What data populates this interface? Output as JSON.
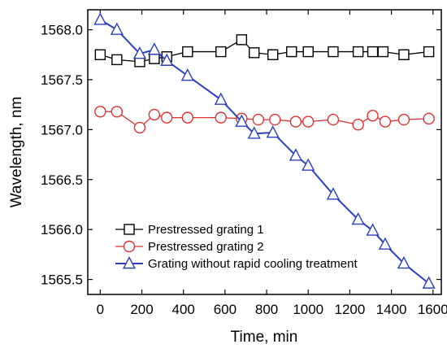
{
  "chart_data": {
    "type": "line",
    "title": "",
    "xlabel": "Time, min",
    "ylabel": "Wavelength, nm",
    "xlim": [
      -60,
      1640
    ],
    "ylim": [
      1565.35,
      1568.2
    ],
    "x_ticks": [
      "0",
      "200",
      "400",
      "600",
      "800",
      "1000",
      "1200",
      "1400",
      "1600"
    ],
    "y_ticks": [
      "1565.5",
      "1566.0",
      "1566.5",
      "1567.0",
      "1567.5",
      "1568.0"
    ],
    "grid": false,
    "legend_position": "bottom-left",
    "series": [
      {
        "name": "Prestressed grating 1",
        "color": "#000000",
        "marker": "square",
        "x": [
          0,
          80,
          190,
          260,
          320,
          420,
          580,
          680,
          740,
          830,
          920,
          1000,
          1120,
          1240,
          1310,
          1360,
          1460,
          1580
        ],
        "y": [
          1567.75,
          1567.7,
          1567.68,
          1567.71,
          1567.73,
          1567.78,
          1567.78,
          1567.9,
          1567.77,
          1567.75,
          1567.78,
          1567.78,
          1567.78,
          1567.78,
          1567.78,
          1567.78,
          1567.75,
          1567.78
        ]
      },
      {
        "name": "Prestressed grating 2",
        "color": "#e03030",
        "marker": "circle",
        "x": [
          0,
          80,
          190,
          260,
          320,
          420,
          580,
          680,
          760,
          840,
          940,
          1000,
          1120,
          1240,
          1310,
          1370,
          1460,
          1580
        ],
        "y": [
          1567.18,
          1567.18,
          1567.02,
          1567.15,
          1567.12,
          1567.12,
          1567.12,
          1567.11,
          1567.1,
          1567.1,
          1567.08,
          1567.08,
          1567.1,
          1567.05,
          1567.14,
          1567.08,
          1567.1,
          1567.11
        ]
      },
      {
        "name": "Grating without rapid cooling treatment",
        "color": "#2a3fc2",
        "marker": "triangle",
        "x": [
          0,
          80,
          190,
          260,
          320,
          420,
          580,
          680,
          740,
          830,
          940,
          1000,
          1120,
          1240,
          1310,
          1370,
          1460,
          1580
        ],
        "y": [
          1568.1,
          1568.0,
          1567.76,
          1567.8,
          1567.69,
          1567.54,
          1567.3,
          1567.08,
          1566.96,
          1566.97,
          1566.74,
          1566.64,
          1566.35,
          1566.1,
          1565.99,
          1565.85,
          1565.66,
          1565.46
        ]
      }
    ]
  }
}
